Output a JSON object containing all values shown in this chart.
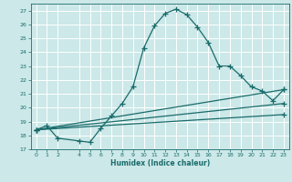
{
  "xlabel": "Humidex (Indice chaleur)",
  "ylabel": "",
  "background_color": "#cce8e8",
  "grid_color": "#ffffff",
  "line_color": "#1a6b6b",
  "xlim": [
    -0.5,
    23.5
  ],
  "ylim": [
    17,
    27.5
  ],
  "yticks": [
    17,
    18,
    19,
    20,
    21,
    22,
    23,
    24,
    25,
    26,
    27
  ],
  "xticks": [
    0,
    1,
    2,
    4,
    5,
    6,
    7,
    8,
    9,
    10,
    11,
    12,
    13,
    14,
    15,
    16,
    17,
    18,
    19,
    20,
    21,
    22,
    23
  ],
  "series": [
    {
      "x": [
        0,
        1,
        2,
        4,
        5,
        6,
        7,
        8,
        9,
        10,
        11,
        12,
        13,
        14,
        15,
        16,
        17,
        18,
        19,
        20,
        21,
        22,
        23
      ],
      "y": [
        18.4,
        18.7,
        17.8,
        17.6,
        17.5,
        18.5,
        19.4,
        20.3,
        21.5,
        24.3,
        25.9,
        26.8,
        27.1,
        26.7,
        25.8,
        24.7,
        23.0,
        23.0,
        22.3,
        21.5,
        21.2,
        20.5,
        21.3
      ]
    },
    {
      "x": [
        0,
        23
      ],
      "y": [
        18.4,
        21.3
      ]
    },
    {
      "x": [
        0,
        23
      ],
      "y": [
        18.4,
        20.3
      ]
    },
    {
      "x": [
        0,
        23
      ],
      "y": [
        18.4,
        19.5
      ]
    }
  ]
}
